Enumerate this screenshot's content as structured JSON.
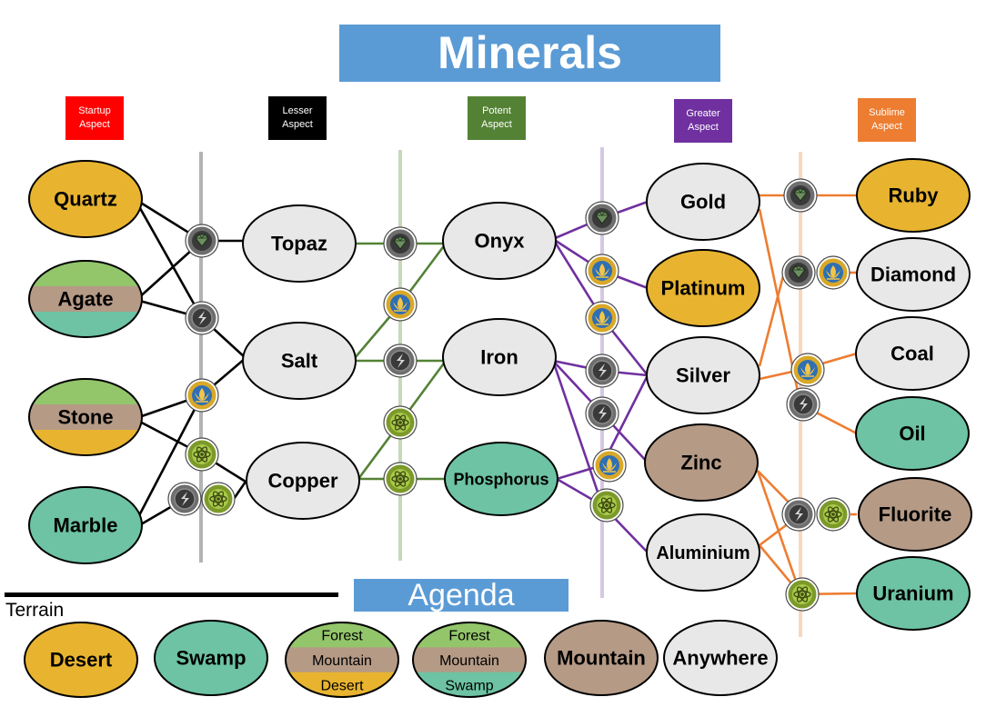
{
  "title": "Minerals",
  "agenda": "Agenda",
  "terrain_label": "Terrain",
  "colors": {
    "desert": "#e8b430",
    "swamp": "#6dc3a4",
    "forest": "#93c56b",
    "mountain": "#b59a86",
    "anywhere": "#e8e8e8",
    "startup": "#ff0000",
    "lesser": "#000000",
    "potent": "#548235",
    "greater": "#7030a0",
    "sublime": "#ed7d31",
    "banner": "#5b9bd5"
  },
  "tiers": [
    {
      "key": "startup",
      "line1": "Startup",
      "line2": "Aspect"
    },
    {
      "key": "lesser",
      "line1": "Lesser",
      "line2": "Aspect"
    },
    {
      "key": "potent",
      "line1": "Potent",
      "line2": "Aspect"
    },
    {
      "key": "greater",
      "line1": "Greater",
      "line2": "Aspect"
    },
    {
      "key": "sublime",
      "line1": "Sublime",
      "line2": "Aspect"
    }
  ],
  "minerals": [
    {
      "id": "quartz",
      "name": "Quartz",
      "terrain": [
        "desert"
      ]
    },
    {
      "id": "agate",
      "name": "Agate",
      "terrain": [
        "forest",
        "mountain",
        "swamp"
      ]
    },
    {
      "id": "stone",
      "name": "Stone",
      "terrain": [
        "forest",
        "mountain",
        "desert"
      ]
    },
    {
      "id": "marble",
      "name": "Marble",
      "terrain": [
        "swamp"
      ]
    },
    {
      "id": "topaz",
      "name": "Topaz",
      "terrain": [
        "anywhere"
      ]
    },
    {
      "id": "salt",
      "name": "Salt",
      "terrain": [
        "anywhere"
      ]
    },
    {
      "id": "copper",
      "name": "Copper",
      "terrain": [
        "anywhere"
      ]
    },
    {
      "id": "onyx",
      "name": "Onyx",
      "terrain": [
        "anywhere"
      ]
    },
    {
      "id": "iron",
      "name": "Iron",
      "terrain": [
        "anywhere"
      ]
    },
    {
      "id": "phosphorus",
      "name": "Phosphorus",
      "terrain": [
        "swamp"
      ]
    },
    {
      "id": "gold",
      "name": "Gold",
      "terrain": [
        "anywhere"
      ]
    },
    {
      "id": "platinum",
      "name": "Platinum",
      "terrain": [
        "desert"
      ]
    },
    {
      "id": "silver",
      "name": "Silver",
      "terrain": [
        "anywhere"
      ]
    },
    {
      "id": "zinc",
      "name": "Zinc",
      "terrain": [
        "mountain"
      ]
    },
    {
      "id": "aluminium",
      "name": "Aluminium",
      "terrain": [
        "anywhere"
      ]
    },
    {
      "id": "ruby",
      "name": "Ruby",
      "terrain": [
        "desert"
      ]
    },
    {
      "id": "diamond",
      "name": "Diamond",
      "terrain": [
        "anywhere"
      ]
    },
    {
      "id": "coal",
      "name": "Coal",
      "terrain": [
        "anywhere"
      ]
    },
    {
      "id": "oil",
      "name": "Oil",
      "terrain": [
        "swamp"
      ]
    },
    {
      "id": "fluorite",
      "name": "Fluorite",
      "terrain": [
        "mountain"
      ]
    },
    {
      "id": "uranium",
      "name": "Uranium",
      "terrain": [
        "swamp"
      ]
    }
  ],
  "legend": [
    {
      "terrain": [
        "desert"
      ],
      "labels": [
        "Desert"
      ]
    },
    {
      "terrain": [
        "swamp"
      ],
      "labels": [
        "Swamp"
      ]
    },
    {
      "terrain": [
        "forest",
        "mountain",
        "desert"
      ],
      "labels": [
        "Forest",
        "Mountain",
        "Desert"
      ]
    },
    {
      "terrain": [
        "forest",
        "mountain",
        "swamp"
      ],
      "labels": [
        "Forest",
        "Mountain",
        "Swamp"
      ]
    },
    {
      "terrain": [
        "mountain"
      ],
      "labels": [
        "Mountain"
      ]
    },
    {
      "terrain": [
        "anywhere"
      ],
      "labels": [
        "Anywhere"
      ]
    }
  ],
  "icons": [
    {
      "name": "gem-icon",
      "kind": "gem"
    },
    {
      "name": "lightning-icon",
      "kind": "bolt"
    },
    {
      "name": "lotus-icon",
      "kind": "lotus"
    },
    {
      "name": "atom-icon",
      "kind": "atom"
    }
  ],
  "connections": [
    {
      "from": "quartz",
      "to": "topaz",
      "via": "gem"
    },
    {
      "from": "agate",
      "to": "topaz",
      "via": "gem"
    },
    {
      "from": "quartz",
      "to": "salt",
      "via": "bolt"
    },
    {
      "from": "agate",
      "to": "salt",
      "via": "bolt"
    },
    {
      "from": "stone",
      "to": "salt",
      "via": "lotus"
    },
    {
      "from": "marble",
      "to": "salt",
      "via": "lotus"
    },
    {
      "from": "stone",
      "to": "copper",
      "via": "atom"
    },
    {
      "from": "marble",
      "to": "copper",
      "via": "bolt+atom"
    },
    {
      "from": "topaz",
      "to": "onyx",
      "via": "gem"
    },
    {
      "from": "salt",
      "to": "onyx",
      "via": "lotus"
    },
    {
      "from": "salt",
      "to": "iron",
      "via": "bolt"
    },
    {
      "from": "copper",
      "to": "iron",
      "via": "atom"
    },
    {
      "from": "copper",
      "to": "phosphorus",
      "via": "atom"
    },
    {
      "from": "onyx",
      "to": "gold",
      "via": "gem"
    },
    {
      "from": "onyx",
      "to": "platinum",
      "via": "lotus"
    },
    {
      "from": "onyx",
      "to": "silver",
      "via": "lotus"
    },
    {
      "from": "iron",
      "to": "silver",
      "via": "bolt"
    },
    {
      "from": "iron",
      "to": "zinc",
      "via": "bolt"
    },
    {
      "from": "iron",
      "to": "aluminium",
      "via": "atom"
    },
    {
      "from": "phosphorus",
      "to": "silver",
      "via": "lotus"
    },
    {
      "from": "phosphorus",
      "to": "aluminium",
      "via": "atom"
    },
    {
      "from": "gold",
      "to": "ruby",
      "via": "gem"
    },
    {
      "from": "gold",
      "to": "oil",
      "via": "bolt"
    },
    {
      "from": "silver",
      "to": "diamond",
      "via": "gem+lotus"
    },
    {
      "from": "silver",
      "to": "coal",
      "via": "lotus"
    },
    {
      "from": "zinc",
      "to": "fluorite",
      "via": "bolt+atom"
    },
    {
      "from": "zinc",
      "to": "uranium",
      "via": "atom"
    },
    {
      "from": "aluminium",
      "to": "fluorite",
      "via": "bolt+atom"
    },
    {
      "from": "aluminium",
      "to": "uranium",
      "via": "atom"
    }
  ]
}
